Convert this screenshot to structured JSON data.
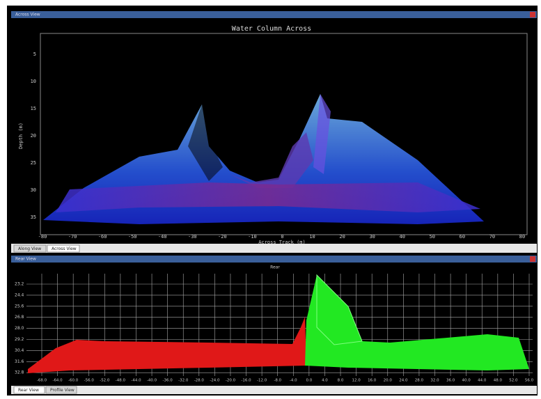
{
  "top_window": {
    "title": "Across View",
    "plot": {
      "title": "Water Column Across",
      "y_label": "Depth (m)",
      "x_label": "Across Track (m)",
      "y_ticks": [
        "5",
        "10",
        "15",
        "20",
        "25",
        "30",
        "35"
      ],
      "x_ticks": [
        "-80",
        "-70",
        "-60",
        "-50",
        "-40",
        "-30",
        "-20",
        "-10",
        "0",
        "10",
        "20",
        "30",
        "40",
        "50",
        "60",
        "70",
        "80"
      ]
    },
    "tabs": [
      "Along View",
      "Across View"
    ]
  },
  "bottom_window": {
    "title": "Rear View",
    "plot": {
      "title": "Rear",
      "y_ticks": [
        "23.2",
        "24.4",
        "25.6",
        "26.8",
        "28.0",
        "29.2",
        "30.4",
        "31.6",
        "32.8"
      ],
      "x_ticks": [
        "-68.0",
        "-64.0",
        "-60.0",
        "-56.0",
        "-52.0",
        "-48.0",
        "-44.0",
        "-40.0",
        "-36.0",
        "-32.0",
        "-28.0",
        "-24.0",
        "-20.0",
        "-16.0",
        "-12.0",
        "-8.0",
        "-4.0",
        "0.0",
        "4.0",
        "8.0",
        "12.0",
        "16.0",
        "20.0",
        "24.0",
        "28.0",
        "32.0",
        "36.0",
        "40.0",
        "44.0",
        "48.0",
        "52.0",
        "56.0"
      ]
    },
    "tabs": [
      "Rear View",
      "Profile View"
    ]
  }
}
